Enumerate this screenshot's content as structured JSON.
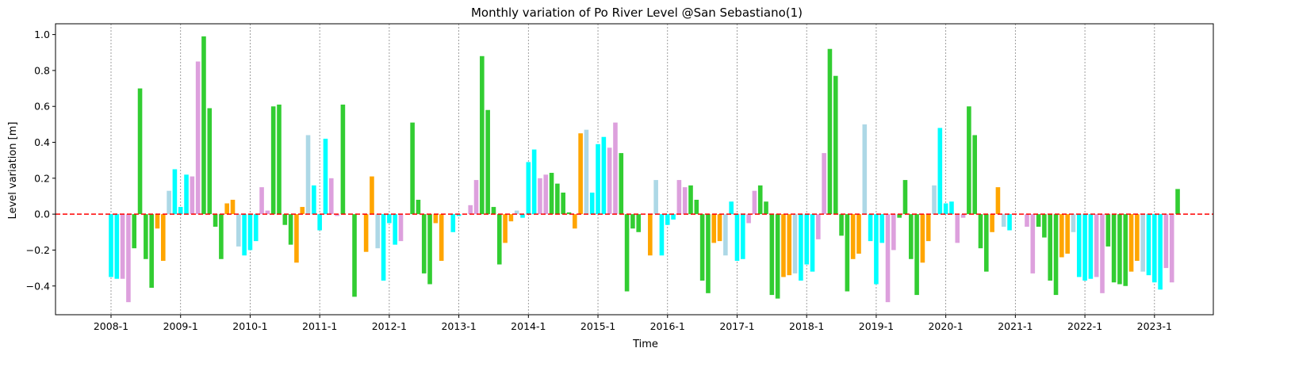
{
  "chart_data": {
    "type": "bar",
    "title": "Monthly variation of Po River Level @San Sebastiano(1)",
    "xlabel": "Time",
    "ylabel": "Level variation [m]",
    "ylim": [
      -0.56,
      1.06
    ],
    "yticks": [
      -0.4,
      -0.2,
      0.0,
      0.2,
      0.4,
      0.6,
      0.8,
      1.0
    ],
    "ytick_labels": [
      "−0.4",
      "−0.2",
      "0.0",
      "0.2",
      "0.4",
      "0.6",
      "0.8",
      "1.0"
    ],
    "xticks": [
      "2008-1",
      "2009-1",
      "2010-1",
      "2011-1",
      "2012-1",
      "2013-1",
      "2014-1",
      "2015-1",
      "2016-1",
      "2017-1",
      "2018-1",
      "2019-1",
      "2020-1",
      "2021-1",
      "2022-1",
      "2023-1"
    ],
    "start_year": 2008,
    "months_shown": 187,
    "reference_line": {
      "y": 0,
      "color": "#ff0000",
      "style": "dashed"
    },
    "year_gridlines": {
      "color": "#888888",
      "style": "dotted"
    },
    "season_colors": {
      "winter": "#00ffff",
      "spring": "#dda0dd",
      "summer": "#32cd32",
      "autumn": "#ffa500",
      "late_autumn": "#add8e6"
    },
    "month_color_keys": [
      "winter",
      "winter",
      "spring",
      "spring",
      "summer",
      "summer",
      "summer",
      "summer",
      "autumn",
      "autumn",
      "late_autumn",
      "winter"
    ],
    "values": [
      -0.35,
      -0.36,
      -0.36,
      -0.49,
      -0.19,
      0.7,
      -0.25,
      -0.41,
      -0.08,
      -0.26,
      0.13,
      0.25,
      0.04,
      0.22,
      0.21,
      0.85,
      0.99,
      0.59,
      -0.07,
      -0.25,
      0.06,
      0.08,
      -0.18,
      -0.23,
      -0.2,
      -0.15,
      0.15,
      0.02,
      0.6,
      0.61,
      -0.06,
      -0.17,
      -0.27,
      0.04,
      0.44,
      0.16,
      -0.09,
      0.42,
      0.2,
      -0.01,
      0.61,
      0.0,
      -0.46,
      0.0,
      -0.21,
      0.21,
      -0.19,
      -0.37,
      -0.05,
      -0.17,
      -0.15,
      0.0,
      0.51,
      0.08,
      -0.33,
      -0.39,
      -0.05,
      -0.26,
      0.0,
      -0.1,
      -0.01,
      0.0,
      0.05,
      0.19,
      0.88,
      0.58,
      0.04,
      -0.28,
      -0.16,
      -0.04,
      0.02,
      -0.02,
      0.29,
      0.36,
      0.2,
      0.22,
      0.23,
      0.17,
      0.12,
      0.01,
      -0.08,
      0.45,
      0.47,
      0.12,
      0.39,
      0.43,
      0.37,
      0.51,
      0.34,
      -0.43,
      -0.08,
      -0.1,
      0.0,
      -0.23,
      0.19,
      -0.23,
      -0.06,
      -0.03,
      0.19,
      0.15,
      0.16,
      0.08,
      -0.37,
      -0.44,
      -0.16,
      -0.15,
      -0.23,
      0.07,
      -0.26,
      -0.25,
      -0.05,
      0.13,
      0.16,
      0.07,
      -0.45,
      -0.47,
      -0.35,
      -0.34,
      -0.33,
      -0.37,
      -0.28,
      -0.32,
      -0.14,
      0.34,
      0.92,
      0.77,
      -0.12,
      -0.43,
      -0.25,
      -0.22,
      0.5,
      -0.15,
      -0.39,
      -0.16,
      -0.49,
      -0.2,
      -0.02,
      0.19,
      -0.25,
      -0.45,
      -0.27,
      -0.15,
      0.16,
      0.48,
      0.06,
      0.07,
      -0.16,
      -0.02,
      0.6,
      0.44,
      -0.19,
      -0.32,
      -0.1,
      0.15,
      -0.07,
      -0.09,
      0.0,
      0.0,
      -0.07,
      -0.33,
      -0.07,
      -0.13,
      -0.37,
      -0.45,
      -0.24,
      -0.22,
      -0.1,
      -0.35,
      -0.37,
      -0.36,
      -0.35,
      -0.44,
      -0.18,
      -0.38,
      -0.39,
      -0.4,
      -0.32,
      -0.26,
      -0.32,
      -0.34,
      -0.38,
      -0.42,
      -0.3,
      -0.38,
      0.14,
      0.0,
      0.0
    ]
  }
}
